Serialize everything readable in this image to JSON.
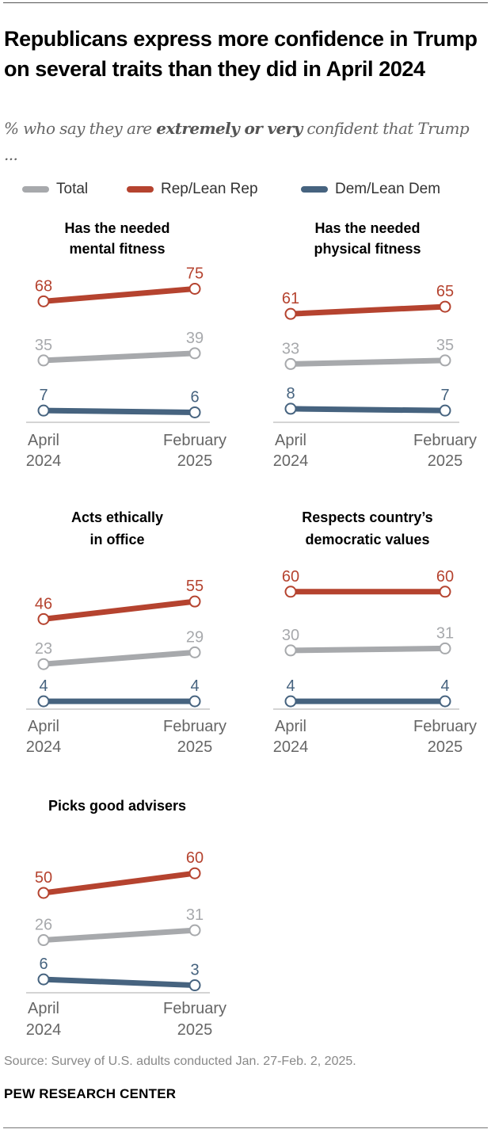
{
  "title": "Republicans express more confidence in Trump on several traits than they did in April 2024",
  "subtitle": {
    "pre": "% who say they are ",
    "bold": "extremely or very",
    "post": " confident that Trump ..."
  },
  "legend": [
    {
      "label": "Total",
      "color": "#a7a9ac"
    },
    {
      "label": "Rep/Lean Rep",
      "color": "#b5432f"
    },
    {
      "label": "Dem/Lean Dem",
      "color": "#46637f"
    }
  ],
  "source": "Source: Survey of U.S. adults conducted Jan. 27-Feb. 2, 2025.",
  "logo": "PEW RESEARCH CENTER",
  "chart_data": [
    {
      "type": "line",
      "title": [
        "Has the needed",
        "mental fitness"
      ],
      "x": [
        [
          "April",
          "2024"
        ],
        [
          "February",
          "2025"
        ]
      ],
      "series": [
        {
          "name": "Total",
          "values": [
            35,
            39
          ]
        },
        {
          "name": "Rep/Lean Rep",
          "values": [
            68,
            75
          ]
        },
        {
          "name": "Dem/Lean Dem",
          "values": [
            7,
            6
          ]
        }
      ]
    },
    {
      "type": "line",
      "title": [
        "Has the needed",
        "physical fitness"
      ],
      "x": [
        [
          "April",
          "2024"
        ],
        [
          "February",
          "2025"
        ]
      ],
      "series": [
        {
          "name": "Total",
          "values": [
            33,
            35
          ]
        },
        {
          "name": "Rep/Lean Rep",
          "values": [
            61,
            65
          ]
        },
        {
          "name": "Dem/Lean Dem",
          "values": [
            8,
            7
          ]
        }
      ]
    },
    {
      "type": "line",
      "title": [
        "Acts ethically",
        "in office"
      ],
      "x": [
        [
          "April",
          "2024"
        ],
        [
          "February",
          "2025"
        ]
      ],
      "series": [
        {
          "name": "Total",
          "values": [
            23,
            29
          ]
        },
        {
          "name": "Rep/Lean Rep",
          "values": [
            46,
            55
          ]
        },
        {
          "name": "Dem/Lean Dem",
          "values": [
            4,
            4
          ]
        }
      ]
    },
    {
      "type": "line",
      "title": [
        "Respects country’s",
        "democratic values"
      ],
      "x": [
        [
          "April",
          "2024"
        ],
        [
          "February",
          "2025"
        ]
      ],
      "series": [
        {
          "name": "Total",
          "values": [
            30,
            31
          ]
        },
        {
          "name": "Rep/Lean Rep",
          "values": [
            60,
            60
          ]
        },
        {
          "name": "Dem/Lean Dem",
          "values": [
            4,
            4
          ]
        }
      ]
    },
    {
      "type": "line",
      "title": [
        "Picks good advisers"
      ],
      "x": [
        [
          "April",
          "2024"
        ],
        [
          "February",
          "2025"
        ]
      ],
      "series": [
        {
          "name": "Total",
          "values": [
            26,
            31
          ]
        },
        {
          "name": "Rep/Lean Rep",
          "values": [
            50,
            60
          ]
        },
        {
          "name": "Dem/Lean Dem",
          "values": [
            6,
            3
          ]
        }
      ]
    }
  ]
}
